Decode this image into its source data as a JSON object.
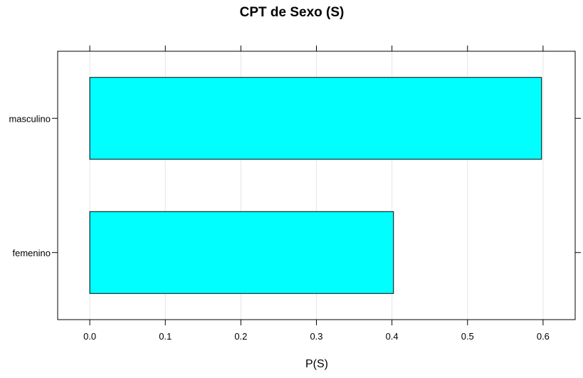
{
  "chart_data": {
    "type": "bar",
    "orientation": "horizontal",
    "title": "CPT de Sexo (S)",
    "xlabel": "P(S)",
    "ylabel": "",
    "categories": [
      "masculino",
      "femenino"
    ],
    "values": [
      0.598,
      0.402
    ],
    "xlim": [
      -0.0425,
      0.6425
    ],
    "xticks": [
      0.0,
      0.1,
      0.2,
      0.3,
      0.4,
      0.5,
      0.6
    ],
    "xtick_labels": [
      "0.0",
      "0.1",
      "0.2",
      "0.3",
      "0.4",
      "0.5",
      "0.6"
    ],
    "grid": "vertical",
    "legend": "none",
    "colors": {
      "bar_fill": "#00FFFF",
      "bar_stroke": "#000000",
      "grid": "#E6E6E6",
      "frame": "#000000"
    }
  }
}
